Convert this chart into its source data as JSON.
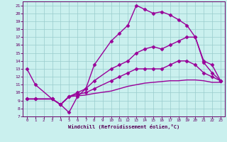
{
  "xlabel": "Windchill (Refroidissement éolien,°C)",
  "bg_color": "#caf0ee",
  "grid_color": "#99cccc",
  "line_color": "#990099",
  "xlim": [
    -0.5,
    23.5
  ],
  "ylim": [
    7,
    21.5
  ],
  "xticks": [
    0,
    1,
    2,
    3,
    4,
    5,
    6,
    7,
    8,
    9,
    10,
    11,
    12,
    13,
    14,
    15,
    16,
    17,
    18,
    19,
    20,
    21,
    22,
    23
  ],
  "yticks": [
    7,
    8,
    9,
    10,
    11,
    12,
    13,
    14,
    15,
    16,
    17,
    18,
    19,
    20,
    21
  ],
  "series": [
    {
      "x": [
        0,
        1,
        3,
        4,
        5,
        6,
        7,
        8,
        10,
        11,
        12,
        13,
        14,
        15,
        16,
        17,
        18,
        19,
        20,
        21,
        22,
        23
      ],
      "y": [
        13,
        11,
        9.2,
        8.5,
        7.5,
        9.5,
        10.5,
        13.5,
        16.5,
        17.5,
        18.5,
        21,
        20.5,
        20,
        20.2,
        19.8,
        19.2,
        18.5,
        17,
        13.8,
        12.5,
        11.5
      ],
      "marker": "D",
      "markersize": 2.5,
      "lw": 1.0
    },
    {
      "x": [
        0,
        1,
        3,
        4,
        5,
        6,
        7,
        8,
        10,
        11,
        12,
        13,
        14,
        15,
        16,
        17,
        18,
        19,
        20,
        21,
        22,
        23
      ],
      "y": [
        9.2,
        9.2,
        9.2,
        8.5,
        9.5,
        10,
        10.5,
        11.5,
        13,
        13.5,
        14,
        15,
        15.5,
        15.8,
        15.5,
        16,
        16.5,
        17,
        17,
        14,
        13.5,
        11.5
      ],
      "marker": "D",
      "markersize": 2.5,
      "lw": 1.0
    },
    {
      "x": [
        0,
        1,
        3,
        4,
        5,
        6,
        7,
        8,
        10,
        11,
        12,
        13,
        14,
        15,
        16,
        17,
        18,
        19,
        20,
        21,
        22,
        23
      ],
      "y": [
        9.2,
        9.2,
        9.2,
        8.5,
        9.5,
        9.8,
        10,
        10.5,
        11.5,
        12,
        12.5,
        13,
        13,
        13,
        13,
        13.5,
        14,
        14,
        13.5,
        12.5,
        12,
        11.5
      ],
      "marker": "D",
      "markersize": 2.5,
      "lw": 1.0
    },
    {
      "x": [
        0,
        1,
        3,
        4,
        5,
        6,
        7,
        8,
        10,
        11,
        12,
        13,
        14,
        15,
        16,
        17,
        18,
        19,
        20,
        21,
        22,
        23
      ],
      "y": [
        9.2,
        9.2,
        9.2,
        8.5,
        9.5,
        9.6,
        9.7,
        9.9,
        10.2,
        10.5,
        10.8,
        11,
        11.2,
        11.3,
        11.4,
        11.5,
        11.5,
        11.6,
        11.6,
        11.5,
        11.3,
        11.3
      ],
      "marker": null,
      "markersize": 0,
      "lw": 1.0
    }
  ]
}
